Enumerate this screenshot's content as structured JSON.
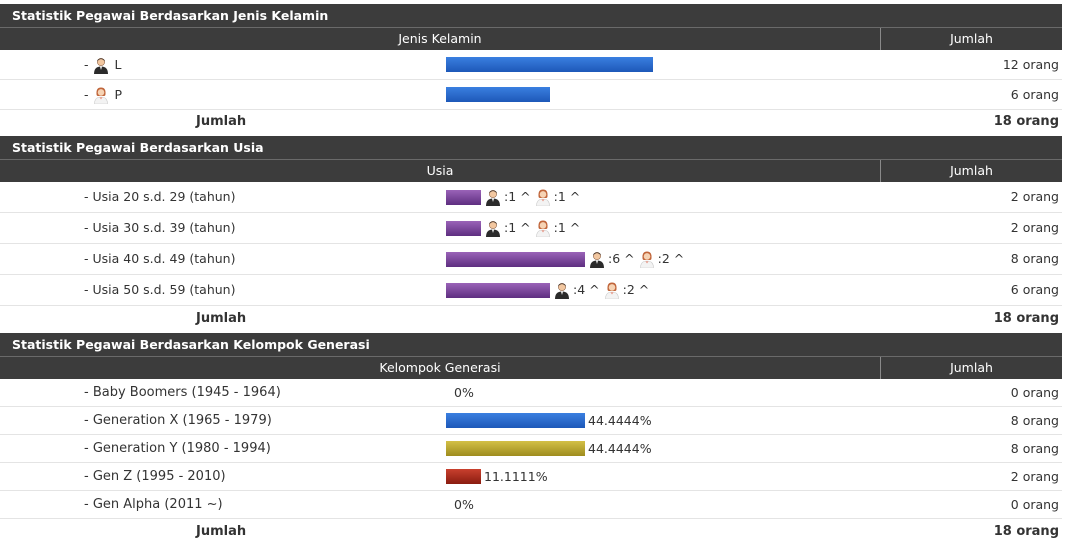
{
  "gender": {
    "title": "Statistik Pegawai Berdasarkan Jenis Kelamin",
    "col_category": "Jenis Kelamin",
    "col_count": "Jumlah",
    "rows": [
      {
        "prefix": "- ",
        "label": "L",
        "icon": "male-user-icon",
        "value": 12,
        "count": "12 orang",
        "bar_fraction": 1.0
      },
      {
        "prefix": "- ",
        "label": "P",
        "icon": "female-user-icon",
        "value": 6,
        "count": "6 orang",
        "bar_fraction": 0.5
      }
    ],
    "total_label": "Jumlah",
    "total_count": "18 orang"
  },
  "age": {
    "title": "Statistik Pegawai Berdasarkan Usia",
    "col_category": "Usia",
    "col_count": "Jumlah",
    "rows": [
      {
        "label": "- Usia 20 s.d. 29 (tahun)",
        "male": ":1 ^",
        "female": ":1 ^",
        "value": 2,
        "count": "2 orang"
      },
      {
        "label": "- Usia 30 s.d. 39 (tahun)",
        "male": ":1 ^",
        "female": ":1 ^",
        "value": 2,
        "count": "2 orang"
      },
      {
        "label": "- Usia 40 s.d. 49 (tahun)",
        "male": ":6 ^",
        "female": ":2 ^",
        "value": 8,
        "count": "8 orang"
      },
      {
        "label": "- Usia 50 s.d. 59 (tahun)",
        "male": ":4 ^",
        "female": ":2 ^",
        "value": 6,
        "count": "6 orang"
      }
    ],
    "total_label": "Jumlah",
    "total_count": "18 orang"
  },
  "generation": {
    "title": "Statistik Pegawai Berdasarkan Kelompok Generasi",
    "col_category": "Kelompok Generasi",
    "col_count": "Jumlah",
    "rows": [
      {
        "label": "- Baby Boomers (1945 - 1964)",
        "percent": "0%",
        "value": 0,
        "count": "0 orang",
        "color": "none"
      },
      {
        "label": "- Generation X (1965 - 1979)",
        "percent": "44.4444%",
        "value": 8,
        "count": "8 orang",
        "color": "blue"
      },
      {
        "label": "- Generation Y (1980 - 1994)",
        "percent": "44.4444%",
        "value": 8,
        "count": "8 orang",
        "color": "olive"
      },
      {
        "label": "- Gen Z (1995 - 2010)",
        "percent": "11.1111%",
        "value": 2,
        "count": "2 orang",
        "color": "red"
      },
      {
        "label": "- Gen Alpha (2011 ~)",
        "percent": "0%",
        "value": 0,
        "count": "0 orang",
        "color": "none"
      }
    ],
    "total_label": "Jumlah",
    "total_count": "18 orang"
  },
  "colors": {
    "header_bg": "#3c3c3c",
    "bar_blue": "#2a6bd0",
    "bar_purple": "#7a4a9c",
    "bar_olive": "#bfae35",
    "bar_red": "#b0301f"
  }
}
